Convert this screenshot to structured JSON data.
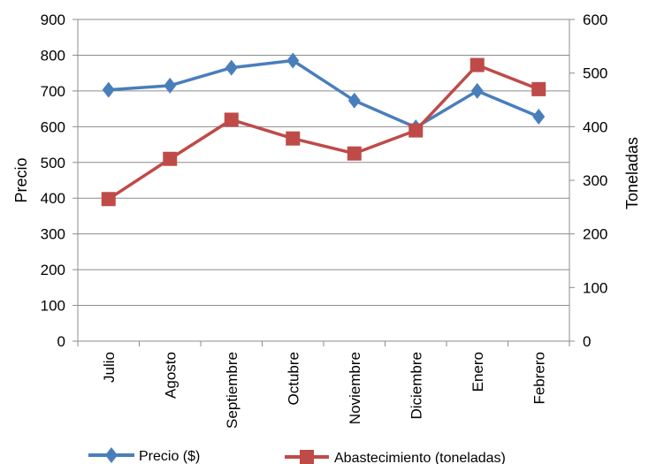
{
  "chart_data": {
    "type": "line",
    "categories": [
      "Julio",
      "Agosto",
      "Septiembre",
      "Octubre",
      "Noviembre",
      "Diciembre",
      "Enero",
      "Febrero"
    ],
    "series": [
      {
        "name": "Precio ($)",
        "axis": "left",
        "color": "#4a7ebb",
        "marker": "diamond",
        "values": [
          703,
          715,
          765,
          785,
          673,
          598,
          700,
          628
        ]
      },
      {
        "name": "Abastecimiento (toneladas)",
        "axis": "right",
        "color": "#be4b48",
        "marker": "square",
        "values": [
          265,
          340,
          413,
          378,
          350,
          393,
          515,
          470
        ]
      }
    ],
    "ylabel": "Precio",
    "y2label": "Toneladas",
    "ylim": [
      0,
      900
    ],
    "yticks": [
      0,
      100,
      200,
      300,
      400,
      500,
      600,
      700,
      800,
      900
    ],
    "y2lim": [
      0,
      600
    ],
    "y2ticks": [
      0,
      100,
      200,
      300,
      400,
      500,
      600
    ],
    "grid": true,
    "legend": "bottom"
  }
}
